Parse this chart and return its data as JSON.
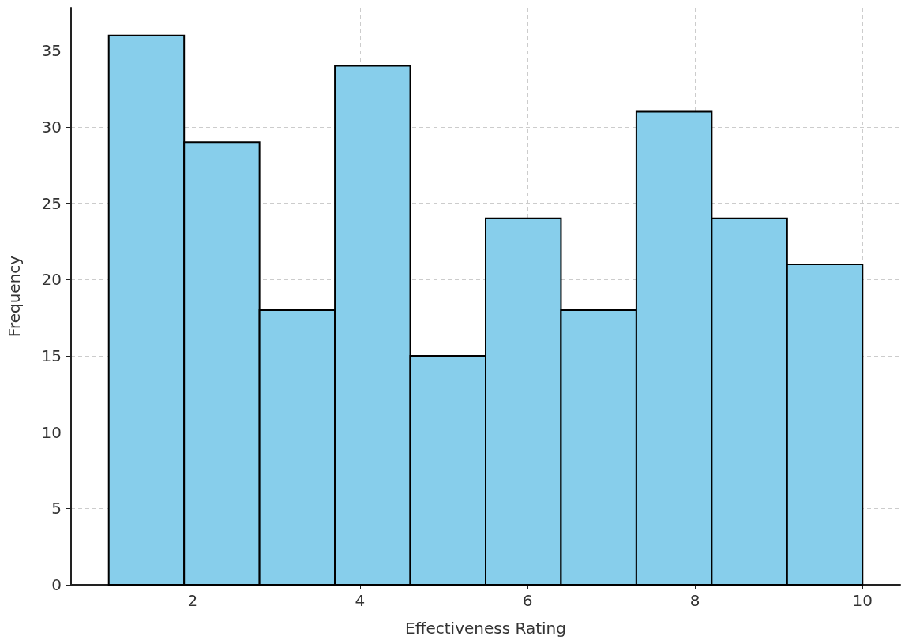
{
  "chart_data": {
    "type": "histogram",
    "xlabel": "Effectiveness Rating",
    "ylabel": "Frequency",
    "bins": [
      1,
      1.9,
      2.8,
      3.7,
      4.6,
      5.5,
      6.4,
      7.3,
      8.2,
      9.1,
      10
    ],
    "values": [
      36,
      29,
      18,
      34,
      15,
      24,
      18,
      31,
      24,
      21
    ],
    "color": "#87ceeb",
    "xlim": [
      0.55,
      10.45
    ],
    "xticks": [
      2,
      4,
      6,
      8,
      10
    ],
    "ylim": [
      0,
      37.8
    ],
    "yticks": [
      0,
      5,
      10,
      15,
      20,
      25,
      30,
      35
    ],
    "grid": true
  }
}
